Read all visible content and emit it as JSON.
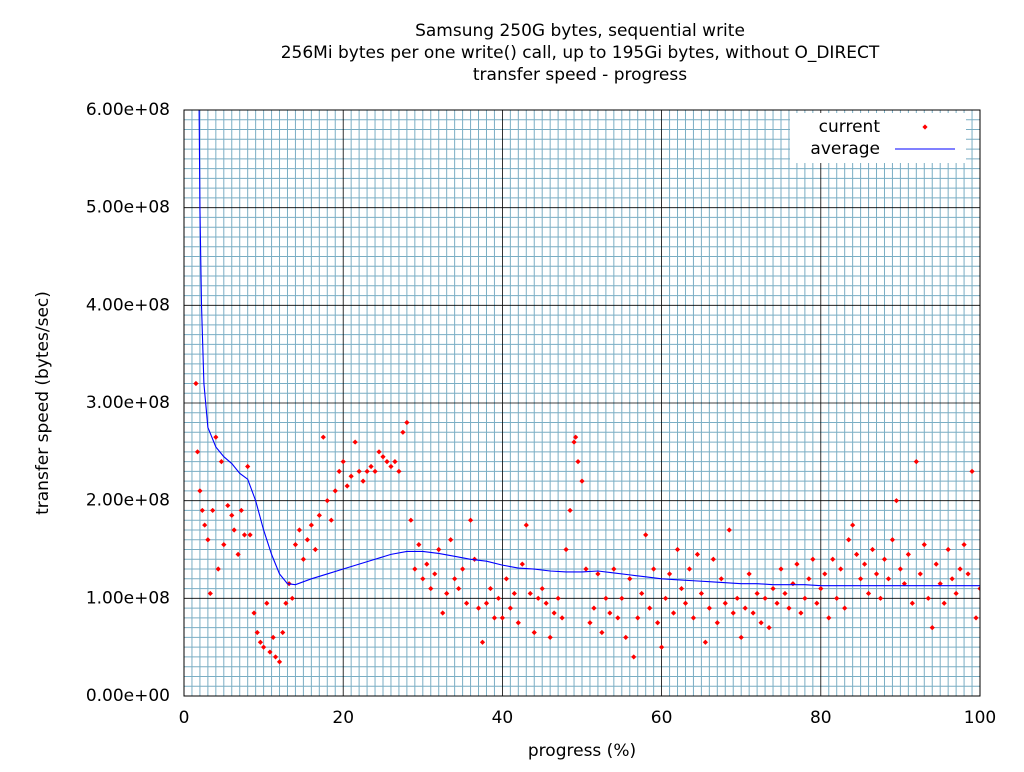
{
  "chart_data": {
    "type": "scatter",
    "title": [
      "Samsung 250G bytes, sequential write",
      "256Mi bytes per one write() call, up to 195Gi bytes, without O_DIRECT",
      "transfer speed - progress"
    ],
    "xlabel": "progress (%)",
    "ylabel": "transfer speed (bytes/sec)",
    "xlim": [
      0,
      100
    ],
    "ylim": [
      0,
      600000000.0
    ],
    "xticks": [
      0,
      20,
      40,
      60,
      80,
      100
    ],
    "yticks": [
      {
        "value": 0,
        "label": "0.00e+00"
      },
      {
        "value": 100000000.0,
        "label": "1.00e+08"
      },
      {
        "value": 200000000.0,
        "label": "2.00e+08"
      },
      {
        "value": 300000000.0,
        "label": "3.00e+08"
      },
      {
        "value": 400000000.0,
        "label": "4.00e+08"
      },
      {
        "value": 500000000.0,
        "label": "5.00e+08"
      },
      {
        "value": 600000000.0,
        "label": "6.00e+08"
      }
    ],
    "grid": true,
    "minor_grid": {
      "x_subdivisions": 20,
      "y_subdivisions": 10
    },
    "legend": "top right",
    "series": [
      {
        "name": "current",
        "color": "#ff0000",
        "style": "points",
        "x": [
          1.5,
          1.7,
          2,
          2.3,
          2.6,
          3,
          3.3,
          3.6,
          4,
          4.3,
          4.7,
          5,
          5.5,
          6,
          6.3,
          6.8,
          7.2,
          7.6,
          8,
          8.3,
          8.8,
          9.2,
          9.6,
          10,
          10.4,
          10.8,
          11.2,
          11.5,
          12,
          12.4,
          12.8,
          13.2,
          13.6,
          14,
          14.5,
          15,
          15.5,
          16,
          16.5,
          17,
          17.5,
          18,
          18.5,
          19,
          19.5,
          20,
          20.5,
          21,
          21.5,
          22,
          22.5,
          23,
          23.5,
          24,
          24.5,
          25,
          25.5,
          26,
          26.5,
          27,
          27.5,
          28,
          28.5,
          29,
          29.5,
          30,
          30.5,
          31,
          31.5,
          32,
          32.5,
          33,
          33.5,
          34,
          34.5,
          35,
          35.5,
          36,
          36.5,
          37,
          37.5,
          38,
          38.5,
          39,
          39.5,
          40,
          40.5,
          41,
          41.5,
          42,
          42.5,
          43,
          43.5,
          44,
          44.5,
          45,
          45.5,
          46,
          46.5,
          47,
          47.5,
          48,
          48.5,
          49,
          49.2,
          49.5,
          50,
          50.5,
          51,
          51.5,
          52,
          52.5,
          53,
          53.5,
          54,
          54.5,
          55,
          55.5,
          56,
          56.5,
          57,
          57.5,
          58,
          58.5,
          59,
          59.5,
          60,
          60.5,
          61,
          61.5,
          62,
          62.5,
          63,
          63.5,
          64,
          64.5,
          65,
          65.5,
          66,
          66.5,
          67,
          67.5,
          68,
          68.5,
          69,
          69.5,
          70,
          70.5,
          71,
          71.5,
          72,
          72.5,
          73,
          73.5,
          74,
          74.5,
          75,
          75.5,
          76,
          76.5,
          77,
          77.5,
          78,
          78.5,
          79,
          79.5,
          80,
          80.5,
          81,
          81.5,
          82,
          82.5,
          83,
          83.5,
          84,
          84.5,
          85,
          85.5,
          86,
          86.5,
          87,
          87.5,
          88,
          88.5,
          89,
          89.5,
          90,
          90.5,
          91,
          91.5,
          92,
          92.5,
          93,
          93.5,
          94,
          94.5,
          95,
          95.5,
          96,
          96.5,
          97,
          97.5,
          98,
          98.5,
          99,
          99.5,
          100
        ],
        "values": [
          320000000.0,
          250000000.0,
          210000000.0,
          190000000.0,
          175000000.0,
          160000000.0,
          105000000.0,
          190000000.0,
          265000000.0,
          130000000.0,
          240000000.0,
          155000000.0,
          195000000.0,
          185000000.0,
          170000000.0,
          145000000.0,
          190000000.0,
          165000000.0,
          235000000.0,
          165000000.0,
          85000000.0,
          65000000.0,
          55000000.0,
          50000000.0,
          95000000.0,
          45000000.0,
          60000000.0,
          40000000.0,
          35000000.0,
          65000000.0,
          95000000.0,
          115000000.0,
          100000000.0,
          155000000.0,
          170000000.0,
          140000000.0,
          160000000.0,
          175000000.0,
          150000000.0,
          185000000.0,
          265000000.0,
          200000000.0,
          180000000.0,
          210000000.0,
          230000000.0,
          240000000.0,
          215000000.0,
          225000000.0,
          260000000.0,
          230000000.0,
          220000000.0,
          230000000.0,
          235000000.0,
          230000000.0,
          250000000.0,
          245000000.0,
          240000000.0,
          235000000.0,
          240000000.0,
          230000000.0,
          270000000.0,
          280000000.0,
          180000000.0,
          130000000.0,
          155000000.0,
          120000000.0,
          135000000.0,
          110000000.0,
          125000000.0,
          150000000.0,
          85000000.0,
          105000000.0,
          160000000.0,
          120000000.0,
          110000000.0,
          130000000.0,
          95000000.0,
          180000000.0,
          140000000.0,
          90000000.0,
          55000000.0,
          95000000.0,
          110000000.0,
          80000000.0,
          100000000.0,
          80000000.0,
          120000000.0,
          90000000.0,
          105000000.0,
          75000000.0,
          135000000.0,
          175000000.0,
          105000000.0,
          65000000.0,
          100000000.0,
          110000000.0,
          95000000.0,
          60000000.0,
          85000000.0,
          100000000.0,
          80000000.0,
          150000000.0,
          190000000.0,
          260000000.0,
          265000000.0,
          240000000.0,
          220000000.0,
          130000000.0,
          75000000.0,
          90000000.0,
          125000000.0,
          65000000.0,
          100000000.0,
          85000000.0,
          130000000.0,
          80000000.0,
          100000000.0,
          60000000.0,
          120000000.0,
          40000000.0,
          80000000.0,
          105000000.0,
          165000000.0,
          90000000.0,
          130000000.0,
          75000000.0,
          50000000.0,
          100000000.0,
          125000000.0,
          85000000.0,
          150000000.0,
          110000000.0,
          95000000.0,
          130000000.0,
          80000000.0,
          145000000.0,
          105000000.0,
          55000000.0,
          90000000.0,
          140000000.0,
          75000000.0,
          120000000.0,
          95000000.0,
          170000000.0,
          85000000.0,
          100000000.0,
          60000000.0,
          90000000.0,
          125000000.0,
          85000000.0,
          105000000.0,
          75000000.0,
          100000000.0,
          70000000.0,
          110000000.0,
          95000000.0,
          130000000.0,
          105000000.0,
          90000000.0,
          115000000.0,
          135000000.0,
          85000000.0,
          100000000.0,
          120000000.0,
          140000000.0,
          95000000.0,
          110000000.0,
          125000000.0,
          80000000.0,
          140000000.0,
          100000000.0,
          130000000.0,
          90000000.0,
          160000000.0,
          175000000.0,
          145000000.0,
          120000000.0,
          135000000.0,
          105000000.0,
          150000000.0,
          125000000.0,
          100000000.0,
          140000000.0,
          120000000.0,
          160000000.0,
          200000000.0,
          130000000.0,
          115000000.0,
          145000000.0,
          95000000.0,
          240000000.0,
          125000000.0,
          155000000.0,
          100000000.0,
          70000000.0,
          135000000.0,
          115000000.0,
          95000000.0,
          150000000.0,
          120000000.0,
          105000000.0,
          130000000.0,
          155000000.0,
          125000000.0,
          230000000.0,
          80000000.0,
          110000000.0
        ]
      },
      {
        "name": "average",
        "color": "#0000ff",
        "style": "line",
        "x": [
          1.9,
          2,
          2.2,
          2.5,
          3,
          4,
          5,
          6,
          7,
          8,
          9,
          10,
          11,
          12,
          13,
          14,
          16,
          18,
          20,
          22,
          24,
          26,
          28,
          30,
          32,
          34,
          36,
          38,
          40,
          42,
          44,
          46,
          48,
          50,
          52,
          54,
          56,
          58,
          60,
          62,
          64,
          66,
          68,
          70,
          72,
          74,
          76,
          78,
          80,
          85,
          90,
          95,
          100
        ],
        "values": [
          600000000.0,
          500000000.0,
          400000000.0,
          320000000.0,
          275000000.0,
          255000000.0,
          245000000.0,
          238000000.0,
          228000000.0,
          222000000.0,
          200000000.0,
          170000000.0,
          145000000.0,
          125000000.0,
          115000000.0,
          114000000.0,
          120000000.0,
          125000000.0,
          130000000.0,
          135000000.0,
          140000000.0,
          145000000.0,
          148000000.0,
          148000000.0,
          146000000.0,
          143000000.0,
          140000000.0,
          138000000.0,
          134000000.0,
          131000000.0,
          130000000.0,
          128000000.0,
          127000000.0,
          127000000.0,
          128000000.0,
          126000000.0,
          124000000.0,
          122000000.0,
          120000000.0,
          119000000.0,
          118000000.0,
          117000000.0,
          116000000.0,
          115000000.0,
          115000000.0,
          114000000.0,
          114000000.0,
          114000000.0,
          113000000.0,
          113000000.0,
          113000000.0,
          113000000.0,
          113000000.0
        ]
      }
    ]
  }
}
